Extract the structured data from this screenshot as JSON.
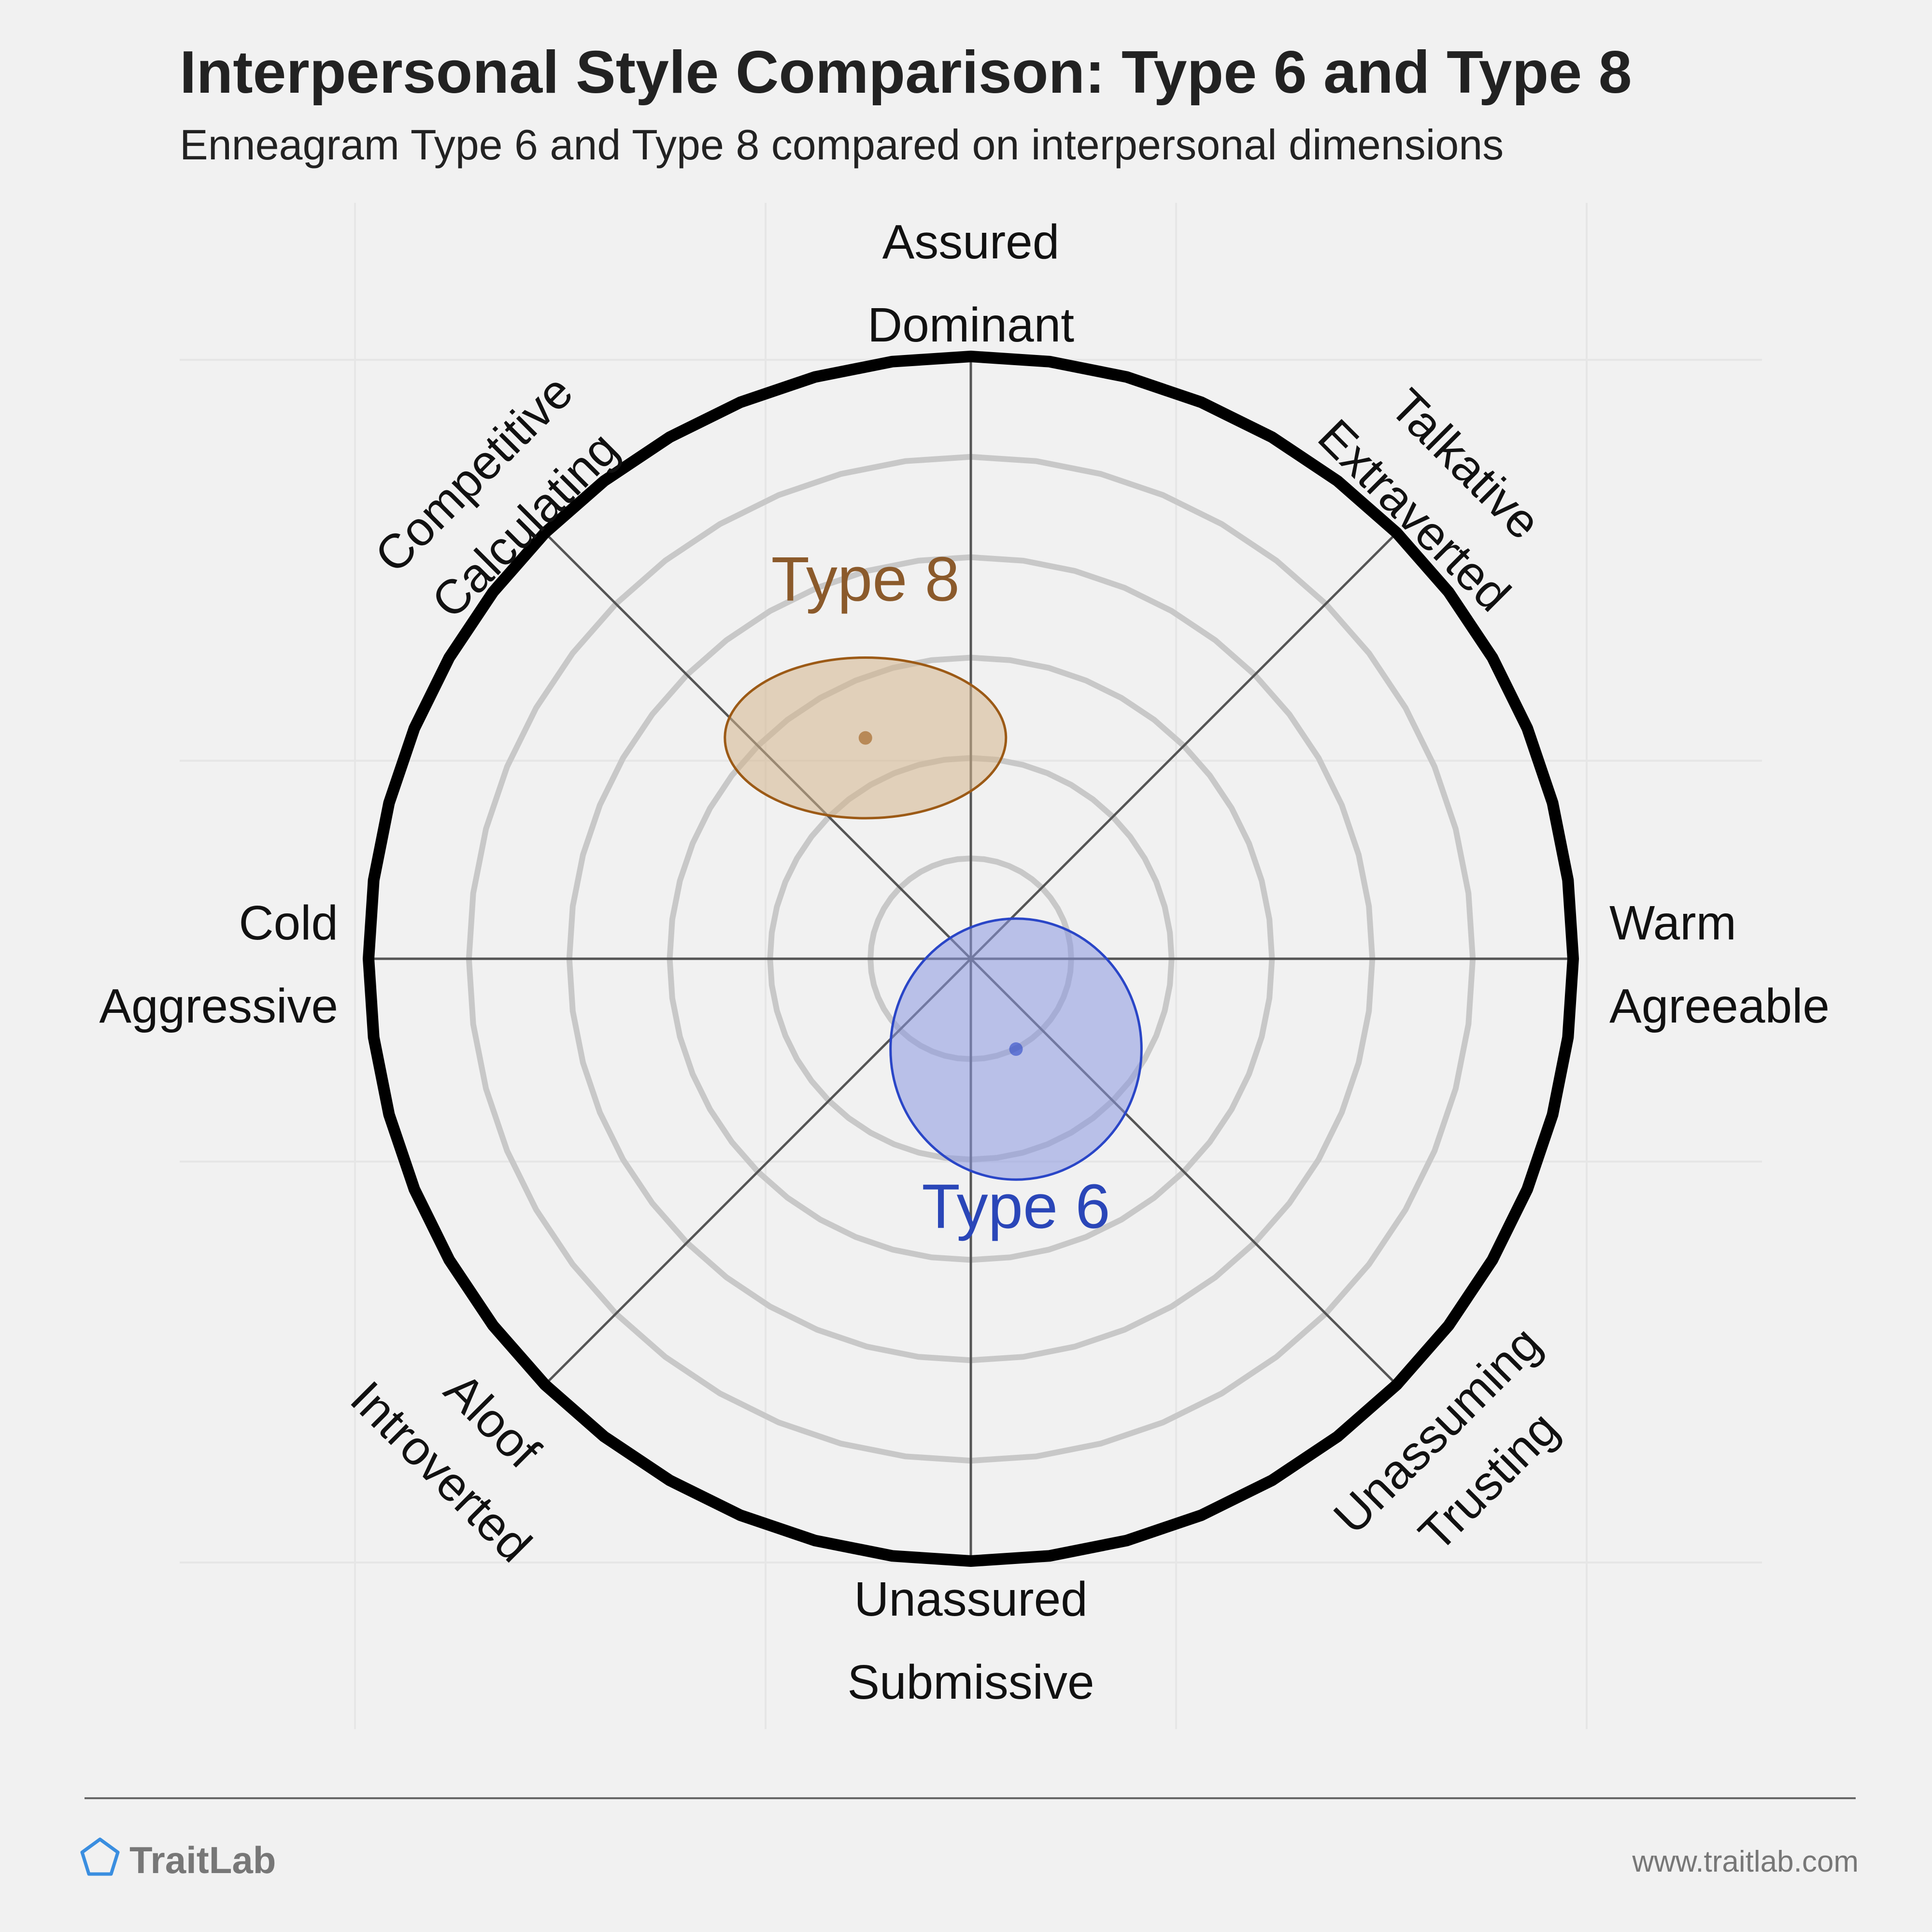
{
  "header": {
    "title": "Interpersonal Style Comparison: Type 6 and Type 8",
    "subtitle": "Enneagram Type 6 and Type 8 compared on interpersonal dimensions"
  },
  "chart_data": {
    "type": "scatter",
    "title": "Interpersonal Style Comparison: Type 6 and Type 8",
    "subtitle": "Enneagram Type 6 and Type 8 compared on interpersonal dimensions",
    "x_axis": {
      "negative_label": [
        "Cold",
        "Aggressive"
      ],
      "positive_label": [
        "Warm",
        "Agreeable"
      ]
    },
    "y_axis": {
      "positive_label": [
        "Assured",
        "Dominant"
      ],
      "negative_label": [
        "Unassured",
        "Submissive"
      ]
    },
    "diagonal_axes": {
      "upper_left": [
        "Competitive",
        "Calculating"
      ],
      "upper_right": [
        "Talkative",
        "Extraverted"
      ],
      "lower_left": [
        "Aloof",
        "Introverted"
      ],
      "lower_right": [
        "Unassuming",
        "Trusting"
      ]
    },
    "xlim": [
      -6,
      6
    ],
    "ylim": [
      -6,
      6
    ],
    "rings": [
      1,
      2,
      3,
      4,
      5,
      6
    ],
    "grid": true,
    "series": [
      {
        "name": "Type 8",
        "x": -1.05,
        "y": 2.2,
        "spread_x": 2.8,
        "spread_y": 1.6,
        "color": "#9c5a16",
        "fill": "#d4b48c",
        "label_color": "#8b5a2b"
      },
      {
        "name": "Type 6",
        "x": 0.45,
        "y": -0.9,
        "spread_x": 2.5,
        "spread_y": 2.6,
        "color": "#2a46c7",
        "fill": "#8b98e0",
        "label_color": "#2a46b8"
      }
    ]
  },
  "footer": {
    "brand": "TraitLab",
    "url": "www.traitlab.com",
    "brand_color": "#3a8ee0"
  }
}
